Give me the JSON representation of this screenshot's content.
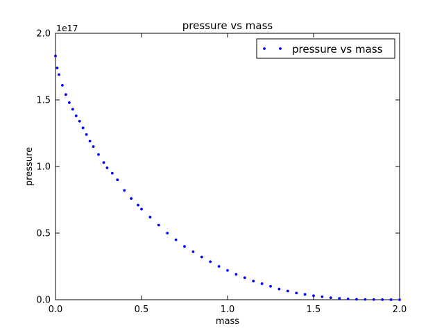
{
  "chart_data": {
    "type": "scatter",
    "title": "pressure vs mass",
    "xlabel": "mass",
    "ylabel": "pressure",
    "offset_label": "1e17",
    "xlim": [
      0.0,
      2.0
    ],
    "ylim": [
      0.0,
      2.0
    ],
    "x_ticks": [
      "0.0",
      "0.5",
      "1.0",
      "1.5",
      "2.0"
    ],
    "y_ticks": [
      "0.0",
      "0.5",
      "1.0",
      "1.5",
      "2.0"
    ],
    "grid": false,
    "legend_position": "top-right",
    "series": [
      {
        "name": "pressure vs mass",
        "color": "#0000ff",
        "marker": "dot",
        "x": [
          0.0,
          0.01,
          0.02,
          0.04,
          0.06,
          0.08,
          0.1,
          0.12,
          0.14,
          0.16,
          0.18,
          0.2,
          0.22,
          0.25,
          0.28,
          0.3,
          0.33,
          0.36,
          0.4,
          0.44,
          0.48,
          0.5,
          0.55,
          0.6,
          0.65,
          0.7,
          0.75,
          0.8,
          0.85,
          0.9,
          0.95,
          1.0,
          1.05,
          1.1,
          1.15,
          1.2,
          1.25,
          1.3,
          1.35,
          1.4,
          1.45,
          1.5,
          1.55,
          1.6,
          1.65,
          1.7,
          1.75,
          1.8,
          1.85,
          1.9,
          1.95,
          2.0
        ],
        "y": [
          1.83,
          1.74,
          1.69,
          1.61,
          1.54,
          1.48,
          1.43,
          1.38,
          1.34,
          1.29,
          1.24,
          1.19,
          1.15,
          1.09,
          1.03,
          0.99,
          0.95,
          0.9,
          0.82,
          0.76,
          0.71,
          0.68,
          0.62,
          0.56,
          0.5,
          0.45,
          0.4,
          0.36,
          0.32,
          0.285,
          0.25,
          0.22,
          0.19,
          0.165,
          0.14,
          0.12,
          0.1,
          0.08,
          0.065,
          0.05,
          0.04,
          0.03,
          0.022,
          0.015,
          0.01,
          0.006,
          0.003,
          0.002,
          0.001,
          0.0005,
          0.0002,
          0.0
        ]
      }
    ]
  }
}
